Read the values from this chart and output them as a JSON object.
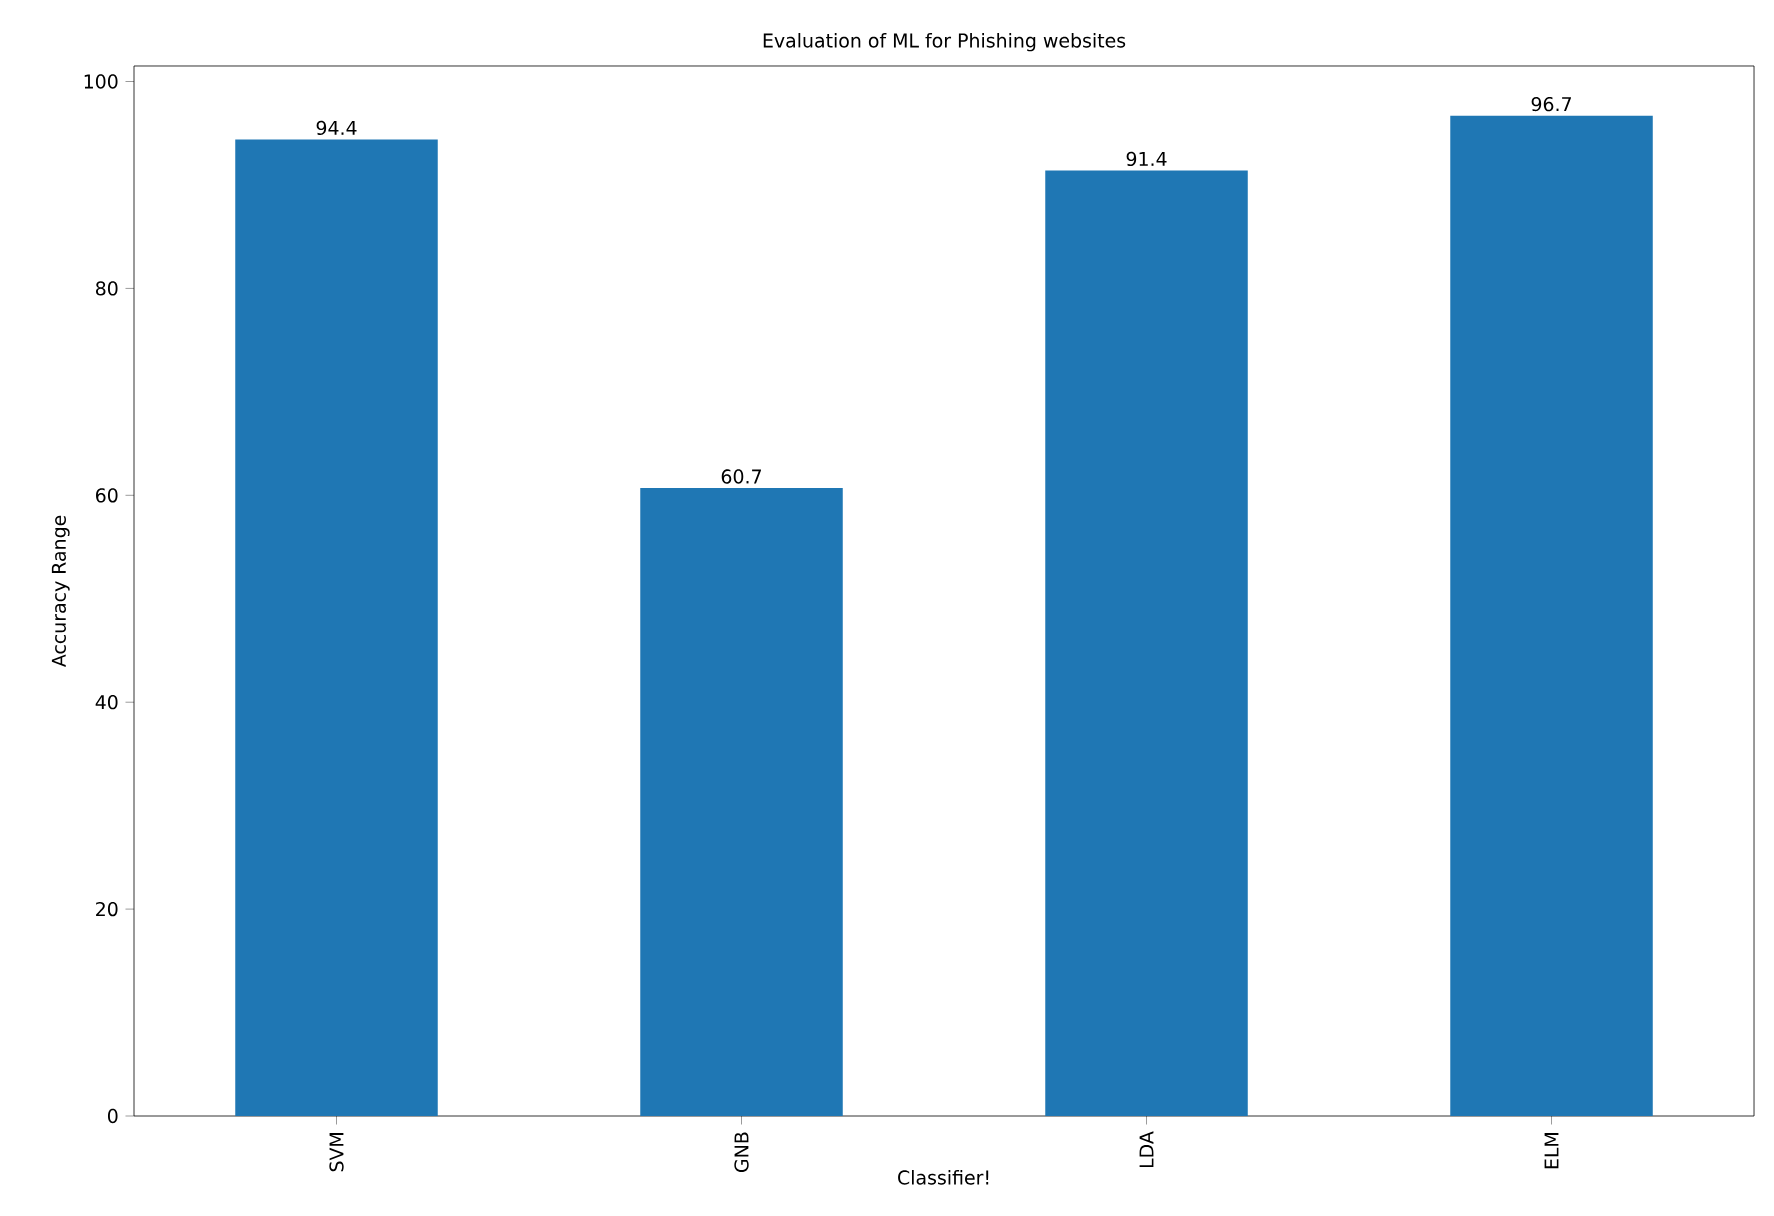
{
  "chart_data": {
    "type": "bar",
    "title": "Evaluation of ML for Phishing websites",
    "xlabel": "Classifier!",
    "ylabel": "Accuracy Range",
    "categories": [
      "SVM",
      "GNB",
      "LDA",
      "ELM"
    ],
    "values": [
      94.4,
      60.7,
      91.4,
      96.7
    ],
    "color": "#1f77b4",
    "ylim": [
      0,
      101.5
    ],
    "yticks": [
      0,
      20,
      40,
      60,
      80,
      100
    ],
    "data_labels": true
  }
}
